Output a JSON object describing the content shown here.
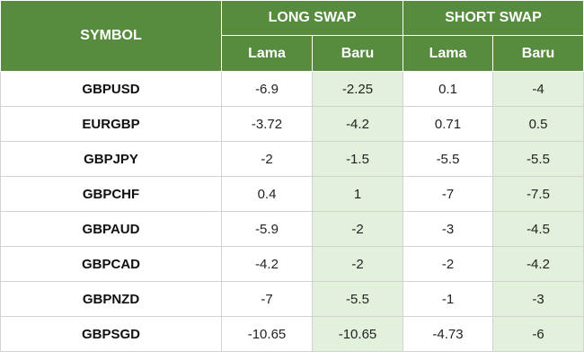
{
  "header": {
    "symbol": "SYMBOL",
    "long_swap": "LONG SWAP",
    "short_swap": "SHORT SWAP",
    "long_lama": "Lama",
    "long_baru": "Baru",
    "short_lama": "Lama",
    "short_baru": "Baru"
  },
  "rows": [
    {
      "symbol": "GBPUSD",
      "long_lama": "-6.9",
      "long_baru": "-2.25",
      "short_lama": "0.1",
      "short_baru": "-4"
    },
    {
      "symbol": "EURGBP",
      "long_lama": "-3.72",
      "long_baru": "-4.2",
      "short_lama": "0.71",
      "short_baru": "0.5"
    },
    {
      "symbol": "GBPJPY",
      "long_lama": "-2",
      "long_baru": "-1.5",
      "short_lama": "-5.5",
      "short_baru": "-5.5"
    },
    {
      "symbol": "GBPCHF",
      "long_lama": "0.4",
      "long_baru": "1",
      "short_lama": "-7",
      "short_baru": "-7.5"
    },
    {
      "symbol": "GBPAUD",
      "long_lama": "-5.9",
      "long_baru": "-2",
      "short_lama": "-3",
      "short_baru": "-4.5"
    },
    {
      "symbol": "GBPCAD",
      "long_lama": "-4.2",
      "long_baru": "-2",
      "short_lama": "-2",
      "short_baru": "-4.2"
    },
    {
      "symbol": "GBPNZD",
      "long_lama": "-7",
      "long_baru": "-5.5",
      "short_lama": "-1",
      "short_baru": "-3"
    },
    {
      "symbol": "GBPSGD",
      "long_lama": "-10.65",
      "long_baru": "-10.65",
      "short_lama": "-4.73",
      "short_baru": "-6"
    }
  ],
  "colors": {
    "header_bg": "#578b3e",
    "header_text": "#ffffff",
    "baru_bg": "#e3f0db",
    "border": "#d2d2d2"
  }
}
